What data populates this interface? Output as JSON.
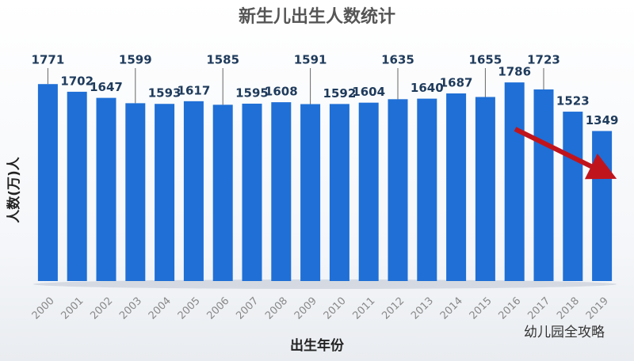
{
  "chart_data": {
    "type": "bar",
    "title": "新生儿出生人数统计",
    "y_label": "人数(万)人",
    "x_label": "出生年份",
    "categories": [
      "2000",
      "2001",
      "2002",
      "2003",
      "2004",
      "2005",
      "2006",
      "2007",
      "2008",
      "2009",
      "2010",
      "2011",
      "2012",
      "2013",
      "2014",
      "2015",
      "2016",
      "2017",
      "2018",
      "2019"
    ],
    "values": [
      1771,
      1702,
      1647,
      1599,
      1593,
      1617,
      1585,
      1595,
      1608,
      1591,
      1592,
      1604,
      1635,
      1640,
      1687,
      1655,
      1786,
      1723,
      1523,
      1349
    ],
    "color": "#1f6fd6",
    "ylim": [
      0,
      2100
    ],
    "watermark": "幼儿园全攻略"
  }
}
